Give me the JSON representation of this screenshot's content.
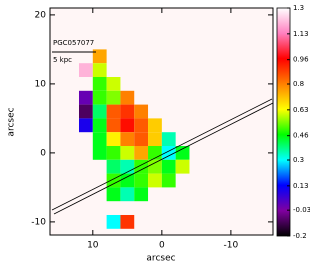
{
  "chart_data": {
    "type": "heatmap",
    "annotations": [
      "PGC057077",
      "5 kpc"
    ],
    "xlabel": "arcsec",
    "ylabel": "arcsec",
    "xlim": [
      16.2,
      -16.1
    ],
    "xticks": [
      10,
      0,
      -10
    ],
    "ylim": [
      -11.9,
      21
    ],
    "yticks": [
      -10,
      0,
      10,
      20
    ],
    "x": [
      11,
      9,
      7,
      5,
      3,
      1,
      -1,
      -3
    ],
    "y": [
      14,
      12,
      10,
      8,
      6,
      4,
      2,
      0,
      -2,
      -4,
      -6,
      -10
    ],
    "z": [
      [
        null,
        0.75,
        null,
        null,
        null,
        null,
        null,
        null
      ],
      [
        1.2,
        0.6,
        null,
        null,
        null,
        null,
        null,
        null
      ],
      [
        null,
        0.5,
        0.6,
        null,
        null,
        null,
        null,
        null
      ],
      [
        0.0,
        0.5,
        0.55,
        0.8,
        null,
        null,
        null,
        null
      ],
      [
        -0.1,
        0.4,
        0.85,
        0.9,
        0.8,
        null,
        null,
        null
      ],
      [
        0.1,
        0.45,
        0.85,
        0.95,
        0.85,
        0.7,
        null,
        null
      ],
      [
        null,
        0.45,
        0.65,
        0.8,
        0.85,
        0.7,
        0.35,
        null
      ],
      [
        null,
        0.45,
        0.5,
        0.6,
        0.75,
        0.5,
        0.3,
        0.45
      ],
      [
        null,
        null,
        0.4,
        0.35,
        0.5,
        0.55,
        0.45,
        0.6
      ],
      [
        null,
        null,
        0.5,
        0.45,
        0.5,
        0.6,
        0.5,
        null
      ],
      [
        null,
        null,
        0.45,
        0.35,
        0.45,
        null,
        null,
        null
      ],
      [
        null,
        null,
        0.3,
        0.9,
        null,
        null,
        null,
        null
      ]
    ],
    "zlim": [
      -0.2,
      1.3
    ],
    "zticks": [
      1.3,
      1.13,
      0.96,
      0.8,
      0.63,
      0.46,
      0.3,
      0.13,
      -0.03,
      -0.2
    ],
    "colormap": [
      "#000000",
      "#8000a0",
      "#0000ff",
      "#00ffff",
      "#00ff00",
      "#ffff00",
      "#ff8000",
      "#ff0000",
      "#ff80c0",
      "#ffffff"
    ]
  }
}
